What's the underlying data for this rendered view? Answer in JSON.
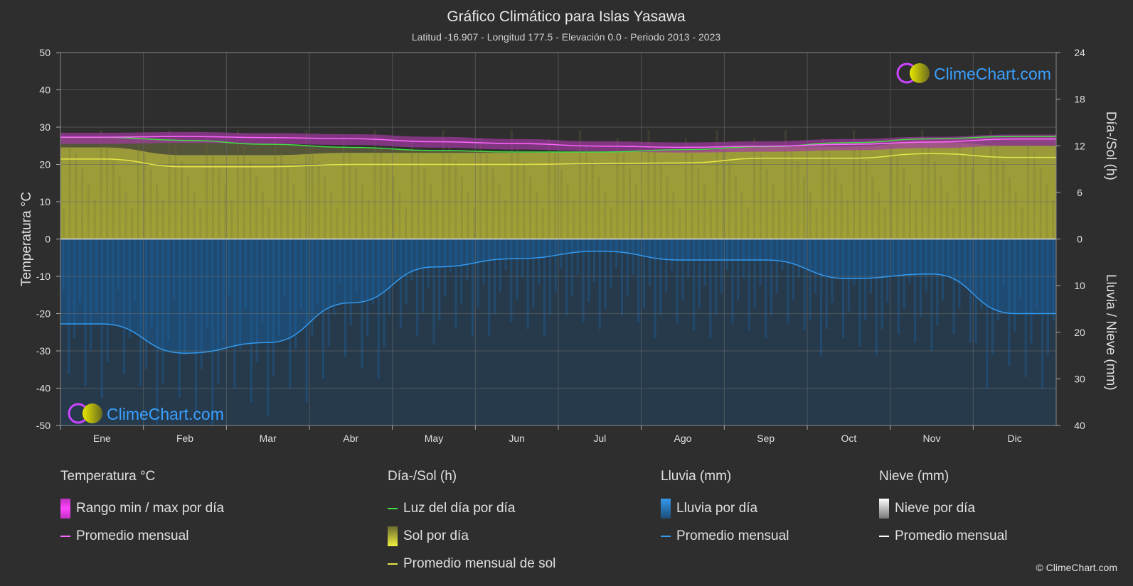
{
  "chart_data": {
    "type": "area",
    "title": "Gráfico Climático para Islas Yasawa",
    "subtitle": "Latitud -16.907 - Longitud 177.5 - Elevación 0.0 - Periodo 2013 - 2023",
    "categories": [
      "Ene",
      "Feb",
      "Mar",
      "Abr",
      "May",
      "Jun",
      "Jul",
      "Ago",
      "Sep",
      "Oct",
      "Nov",
      "Dic"
    ],
    "y_left": {
      "label": "Temperatura °C",
      "ticks": [
        "50",
        "40",
        "30",
        "20",
        "10",
        "0",
        "-10",
        "-20",
        "-30",
        "-40",
        "-50"
      ],
      "range": [
        -50,
        50
      ]
    },
    "y_right_top": {
      "label": "Día-/Sol (h)",
      "ticks": [
        "24",
        "18",
        "12",
        "6",
        "0"
      ],
      "range": [
        0,
        24
      ]
    },
    "y_right_bottom": {
      "label": "Lluvia / Nieve (mm)",
      "ticks": [
        "0",
        "10",
        "20",
        "30",
        "40"
      ],
      "range": [
        0,
        40
      ]
    },
    "grid": true,
    "series": [
      {
        "name": "Promedio mensual",
        "group": "temperature",
        "color": "#ff66ff",
        "values": [
          27.3,
          27.5,
          27.2,
          26.9,
          26.1,
          25.6,
          24.9,
          24.6,
          24.9,
          25.4,
          26.0,
          26.8
        ]
      },
      {
        "name": "Luz del día por día",
        "group": "daylight",
        "color": "#44dd44",
        "values": [
          13.1,
          12.7,
          12.2,
          11.8,
          11.4,
          11.2,
          11.2,
          11.5,
          11.9,
          12.4,
          12.9,
          13.2
        ]
      },
      {
        "name": "Promedio mensual de sol",
        "group": "sunshine",
        "color": "#e5e54a",
        "values": [
          10.3,
          9.3,
          9.3,
          9.6,
          9.6,
          9.6,
          9.7,
          9.8,
          10.4,
          10.4,
          11.0,
          10.5
        ]
      },
      {
        "name": "Promedio mensual",
        "group": "rain",
        "color": "#3399ee",
        "values": [
          18.2,
          24.5,
          22.2,
          13.7,
          6.0,
          4.2,
          2.6,
          4.5,
          4.5,
          8.5,
          7.5,
          16.0
        ]
      }
    ],
    "temp_range_band": {
      "min": [
        25.5,
        25.8,
        25.5,
        25.2,
        24.5,
        24.0,
        23.5,
        23.2,
        23.4,
        23.8,
        24.4,
        25.0
      ],
      "max": [
        28.5,
        28.7,
        28.4,
        28.1,
        27.4,
        26.8,
        26.2,
        25.9,
        26.2,
        26.8,
        27.4,
        28.0
      ]
    }
  },
  "legend": {
    "temperature": {
      "header": "Temperatura °C",
      "items": [
        "Rango min / max por día",
        "Promedio mensual"
      ]
    },
    "sun": {
      "header": "Día-/Sol (h)",
      "items": [
        "Luz del día por día",
        "Sol por día",
        "Promedio mensual de sol"
      ]
    },
    "rain": {
      "header": "Lluvia (mm)",
      "items": [
        "Lluvia por día",
        "Promedio mensual"
      ]
    },
    "snow": {
      "header": "Nieve (mm)",
      "items": [
        "Nieve por día",
        "Promedio mensual"
      ]
    }
  },
  "logo_text": "ClimeChart.com",
  "copyright": "© ClimeChart.com",
  "colors": {
    "background": "#2e2e2e",
    "temp": "#ff66ff",
    "daylight": "#44dd44",
    "sun": "#e5e54a",
    "rain": "#3399ee",
    "snow": "#ffffff",
    "logo": "#3aa0ff"
  }
}
